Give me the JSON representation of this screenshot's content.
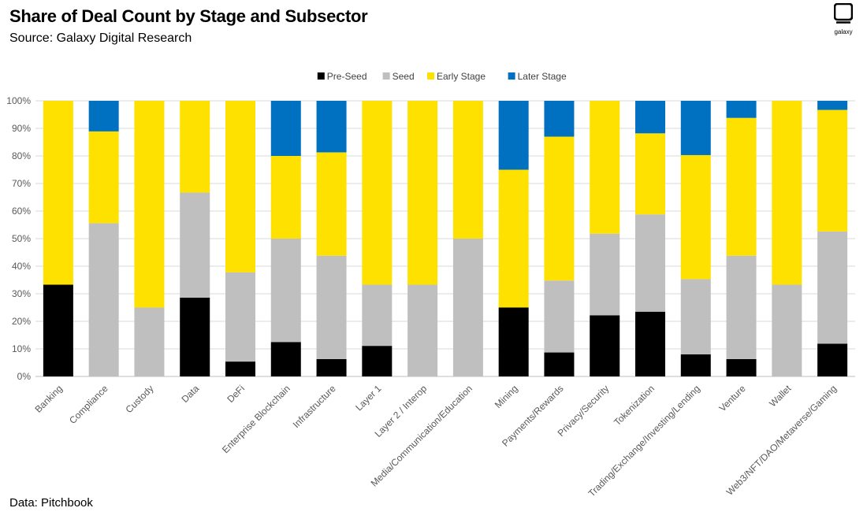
{
  "header": {
    "title": "Share of Deal Count by Stage and Subsector",
    "subtitle": "Source: Galaxy Digital Research",
    "logo_text": "galaxy"
  },
  "footer": {
    "note": "Data: Pitchbook"
  },
  "colors": {
    "Pre-Seed": "#000000",
    "Seed": "#bfbfbf",
    "Early Stage": "#ffe100",
    "Later Stage": "#0070c0"
  },
  "chart_data": {
    "type": "bar",
    "stacked": true,
    "title": "Share of Deal Count by Stage and Subsector",
    "xlabel": "",
    "ylabel": "",
    "ylim": [
      0,
      100
    ],
    "yticks": [
      "0%",
      "10%",
      "20%",
      "30%",
      "40%",
      "50%",
      "60%",
      "70%",
      "80%",
      "90%",
      "100%"
    ],
    "legend_position": "top-center",
    "categories": [
      "Banking",
      "Compliance",
      "Custody",
      "Data",
      "DeFi",
      "Enterprise Blockchain",
      "Infrastructure",
      "Layer 1",
      "Layer 2 / Interop",
      "Media/Communication/Education",
      "Mining",
      "Payments/Rewards",
      "Privacy/Security",
      "Tokenization",
      "Trading/Exchange/Investing/Lending",
      "Venture",
      "Wallet",
      "Web3/NFT/DAO/Metaverse/Gaming"
    ],
    "series": [
      {
        "name": "Pre-Seed",
        "values": [
          33.3,
          0,
          0,
          28.6,
          5.4,
          12.5,
          6.3,
          11.1,
          0,
          0,
          25.0,
          8.7,
          22.2,
          23.5,
          8.0,
          6.3,
          0,
          11.9
        ]
      },
      {
        "name": "Seed",
        "values": [
          0,
          55.6,
          25.0,
          38.1,
          32.4,
          37.5,
          37.5,
          22.2,
          33.3,
          50.0,
          0,
          26.1,
          29.6,
          35.3,
          27.3,
          37.5,
          33.3,
          40.7
        ]
      },
      {
        "name": "Early Stage",
        "values": [
          66.7,
          33.3,
          75.0,
          33.3,
          62.2,
          30.0,
          37.5,
          66.7,
          66.7,
          50.0,
          50.0,
          52.2,
          48.2,
          29.4,
          45.0,
          50.0,
          66.7,
          44.1
        ]
      },
      {
        "name": "Later Stage",
        "values": [
          0,
          11.1,
          0,
          0,
          0,
          20.0,
          18.7,
          0,
          0,
          0,
          25.0,
          13.0,
          0,
          11.8,
          19.7,
          6.2,
          0,
          3.3
        ]
      }
    ]
  }
}
